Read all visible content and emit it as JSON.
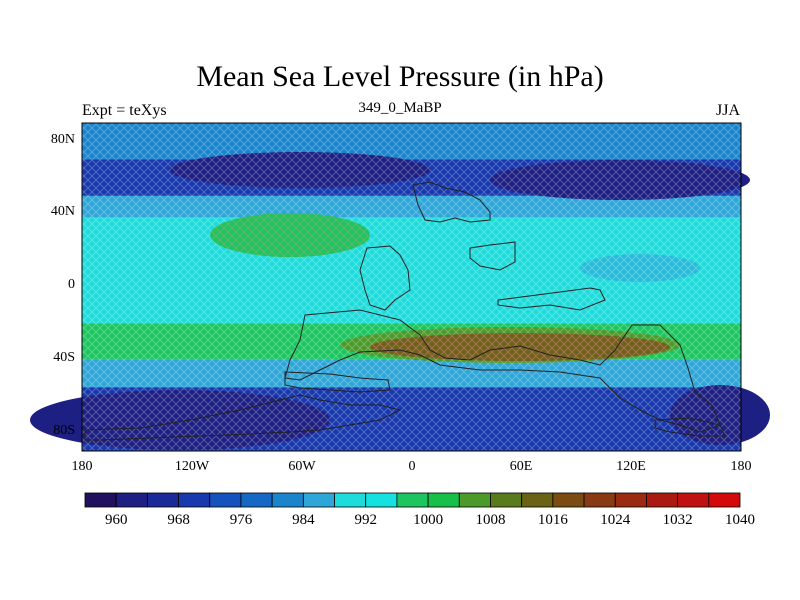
{
  "title": "Mean Sea Level Pressure (in hPa)",
  "left_label": "Expt = teXys",
  "center_label": "349_0_MaBP",
  "right_label": "JJA",
  "axes": {
    "lat_ticks": [
      "80N",
      "40N",
      "0",
      "40S",
      "80S"
    ],
    "lon_ticks": [
      "180",
      "120W",
      "60W",
      "0",
      "60E",
      "120E",
      "180"
    ]
  },
  "colorbar": {
    "colors": [
      "#20105e",
      "#1e1f82",
      "#1a2a99",
      "#1838ad",
      "#1552bd",
      "#1568c4",
      "#1a85cc",
      "#2fa6d8",
      "#1fdcdc",
      "#16e1e1",
      "#1dc560",
      "#18c04a",
      "#4c9a2a",
      "#5a7a1e",
      "#6a6215",
      "#7a4c14",
      "#8a3a12",
      "#9a2a12",
      "#aa1a10",
      "#c01010",
      "#d40a0a"
    ],
    "labels": [
      "960",
      "968",
      "976",
      "984",
      "992",
      "1000",
      "1008",
      "1016",
      "1024",
      "1032",
      "1040"
    ]
  },
  "map_bands": [
    {
      "lat_from": 90,
      "lat_to": 70,
      "color": "#1a85cc"
    },
    {
      "lat_from": 70,
      "lat_to": 50,
      "color": "#1838ad"
    },
    {
      "lat_from": 50,
      "lat_to": 38,
      "color": "#2fa6d8"
    },
    {
      "lat_from": 38,
      "lat_to": -20,
      "color": "#1fdcdc"
    },
    {
      "lat_from": -20,
      "lat_to": -40,
      "color": "#1dc560"
    },
    {
      "lat_from": -40,
      "lat_to": -55,
      "color": "#2fa6d8"
    },
    {
      "lat_from": -55,
      "lat_to": -90,
      "color": "#1838ad"
    }
  ]
}
